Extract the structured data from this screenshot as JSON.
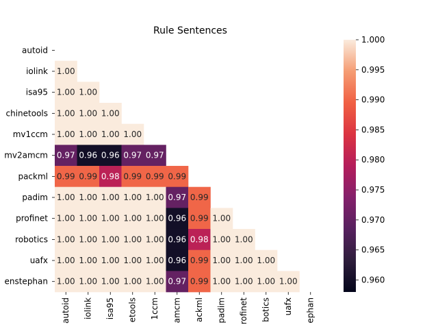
{
  "chart_data": {
    "type": "heatmap",
    "title": "Rule Sentences",
    "xlabel": "",
    "ylabel": "",
    "mask": "upper-triangle-including-diagonal",
    "value_format": "2 decimals",
    "row_labels": [
      "autoid",
      "iolink",
      "isa95",
      "chinetools",
      "mv1ccm",
      "mv2amcm",
      "packml",
      "padim",
      "profinet",
      "robotics",
      "uafx",
      "enstephan"
    ],
    "column_labels": [
      "autoid",
      "iolink",
      "isa95",
      "etools",
      "1ccm",
      "amcm",
      "ackml",
      "padim",
      "rofinet",
      "botics",
      "uafx",
      "ephan"
    ],
    "values": [
      [
        null,
        null,
        null,
        null,
        null,
        null,
        null,
        null,
        null,
        null,
        null,
        null
      ],
      [
        1.0,
        null,
        null,
        null,
        null,
        null,
        null,
        null,
        null,
        null,
        null,
        null
      ],
      [
        1.0,
        1.0,
        null,
        null,
        null,
        null,
        null,
        null,
        null,
        null,
        null,
        null
      ],
      [
        1.0,
        1.0,
        1.0,
        null,
        null,
        null,
        null,
        null,
        null,
        null,
        null,
        null
      ],
      [
        1.0,
        1.0,
        1.0,
        1.0,
        null,
        null,
        null,
        null,
        null,
        null,
        null,
        null
      ],
      [
        0.97,
        0.96,
        0.96,
        0.97,
        0.97,
        null,
        null,
        null,
        null,
        null,
        null,
        null
      ],
      [
        0.99,
        0.99,
        0.98,
        0.99,
        0.99,
        0.99,
        null,
        null,
        null,
        null,
        null,
        null
      ],
      [
        1.0,
        1.0,
        1.0,
        1.0,
        1.0,
        0.97,
        0.99,
        null,
        null,
        null,
        null,
        null
      ],
      [
        1.0,
        1.0,
        1.0,
        1.0,
        1.0,
        0.96,
        0.99,
        1.0,
        null,
        null,
        null,
        null
      ],
      [
        1.0,
        1.0,
        1.0,
        1.0,
        1.0,
        0.96,
        0.98,
        1.0,
        1.0,
        null,
        null,
        null
      ],
      [
        1.0,
        1.0,
        1.0,
        1.0,
        1.0,
        0.96,
        0.99,
        1.0,
        1.0,
        1.0,
        null,
        null
      ],
      [
        1.0,
        1.0,
        1.0,
        1.0,
        1.0,
        0.97,
        0.99,
        1.0,
        1.0,
        1.0,
        1.0,
        null
      ]
    ],
    "colorbar": {
      "colormap": "rocket",
      "vmin": 0.958,
      "vmax": 1.0,
      "ticks": [
        "0.960",
        "0.965",
        "0.970",
        "0.975",
        "0.980",
        "0.985",
        "0.990",
        "0.995",
        "1.000"
      ],
      "placement": "right"
    },
    "grid": false,
    "legend": "none"
  }
}
